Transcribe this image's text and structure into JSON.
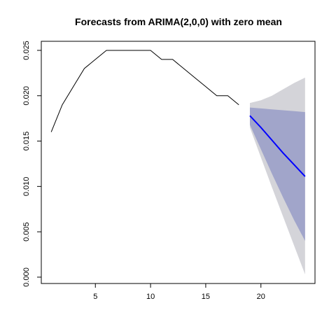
{
  "chart_data": {
    "type": "line",
    "title": "Forecasts from ARIMA(2,0,0) with zero mean",
    "xlabel": "",
    "ylabel": "",
    "xlim": [
      0.1,
      24.9
    ],
    "ylim": [
      -0.0007,
      0.026
    ],
    "grid": false,
    "legend": "none",
    "x_ticks": [
      5,
      10,
      15,
      20
    ],
    "x_tick_labels": [
      "5",
      "10",
      "15",
      "20"
    ],
    "y_ticks": [
      0.0,
      0.005,
      0.01,
      0.015,
      0.02,
      0.025
    ],
    "y_tick_labels": [
      "0.000",
      "0.005",
      "0.010",
      "0.015",
      "0.020",
      "0.025"
    ],
    "observed": {
      "x": [
        1,
        2,
        3,
        4,
        5,
        6,
        7,
        8,
        9,
        10,
        11,
        12,
        13,
        14,
        15,
        16,
        17,
        18
      ],
      "y": [
        0.016,
        0.019,
        0.021,
        0.023,
        0.024,
        0.025,
        0.025,
        0.025,
        0.025,
        0.025,
        0.024,
        0.024,
        0.023,
        0.022,
        0.021,
        0.02,
        0.02,
        0.019
      ],
      "color": "#000000"
    },
    "forecast": {
      "x": [
        19,
        20,
        21,
        22,
        23,
        24
      ],
      "mean": [
        0.0178,
        0.0165,
        0.0151,
        0.0137,
        0.0124,
        0.0111
      ],
      "lo80": [
        0.0168,
        0.0141,
        0.0114,
        0.0088,
        0.0063,
        0.004
      ],
      "hi80": [
        0.0187,
        0.0186,
        0.0185,
        0.0184,
        0.0183,
        0.0182
      ],
      "lo95": [
        0.0165,
        0.0132,
        0.0099,
        0.0067,
        0.0035,
        0.0003
      ],
      "hi95": [
        0.0192,
        0.0195,
        0.02,
        0.0207,
        0.0214,
        0.022
      ],
      "mean_color": "#0000ff",
      "band80_color": "#a1a5ca",
      "band95_color": "#d4d4d9"
    }
  }
}
